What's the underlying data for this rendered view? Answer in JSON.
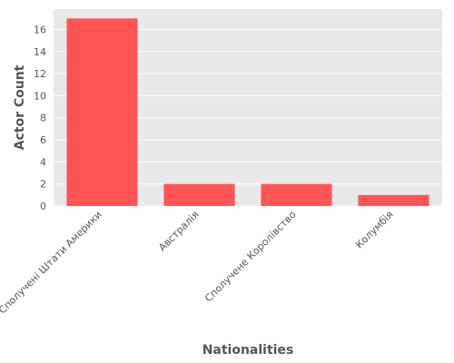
{
  "chart_data": {
    "type": "bar",
    "categories": [
      "Сполучені Штати Америки",
      "Австралія",
      "Сполучене Королівство",
      "Колумбія"
    ],
    "values": [
      17,
      2,
      2,
      1
    ],
    "title": "",
    "xlabel": "Nationalities",
    "ylabel": "Actor Count",
    "ylim": [
      0,
      17.85
    ],
    "yticks": [
      0,
      2,
      4,
      6,
      8,
      10,
      12,
      14,
      16
    ],
    "grid": true,
    "legend": "none",
    "colors": {
      "bar": "#ff5555",
      "plot_background": "#e9e9e9",
      "grid": "#ffffff",
      "text": "#555555"
    }
  }
}
